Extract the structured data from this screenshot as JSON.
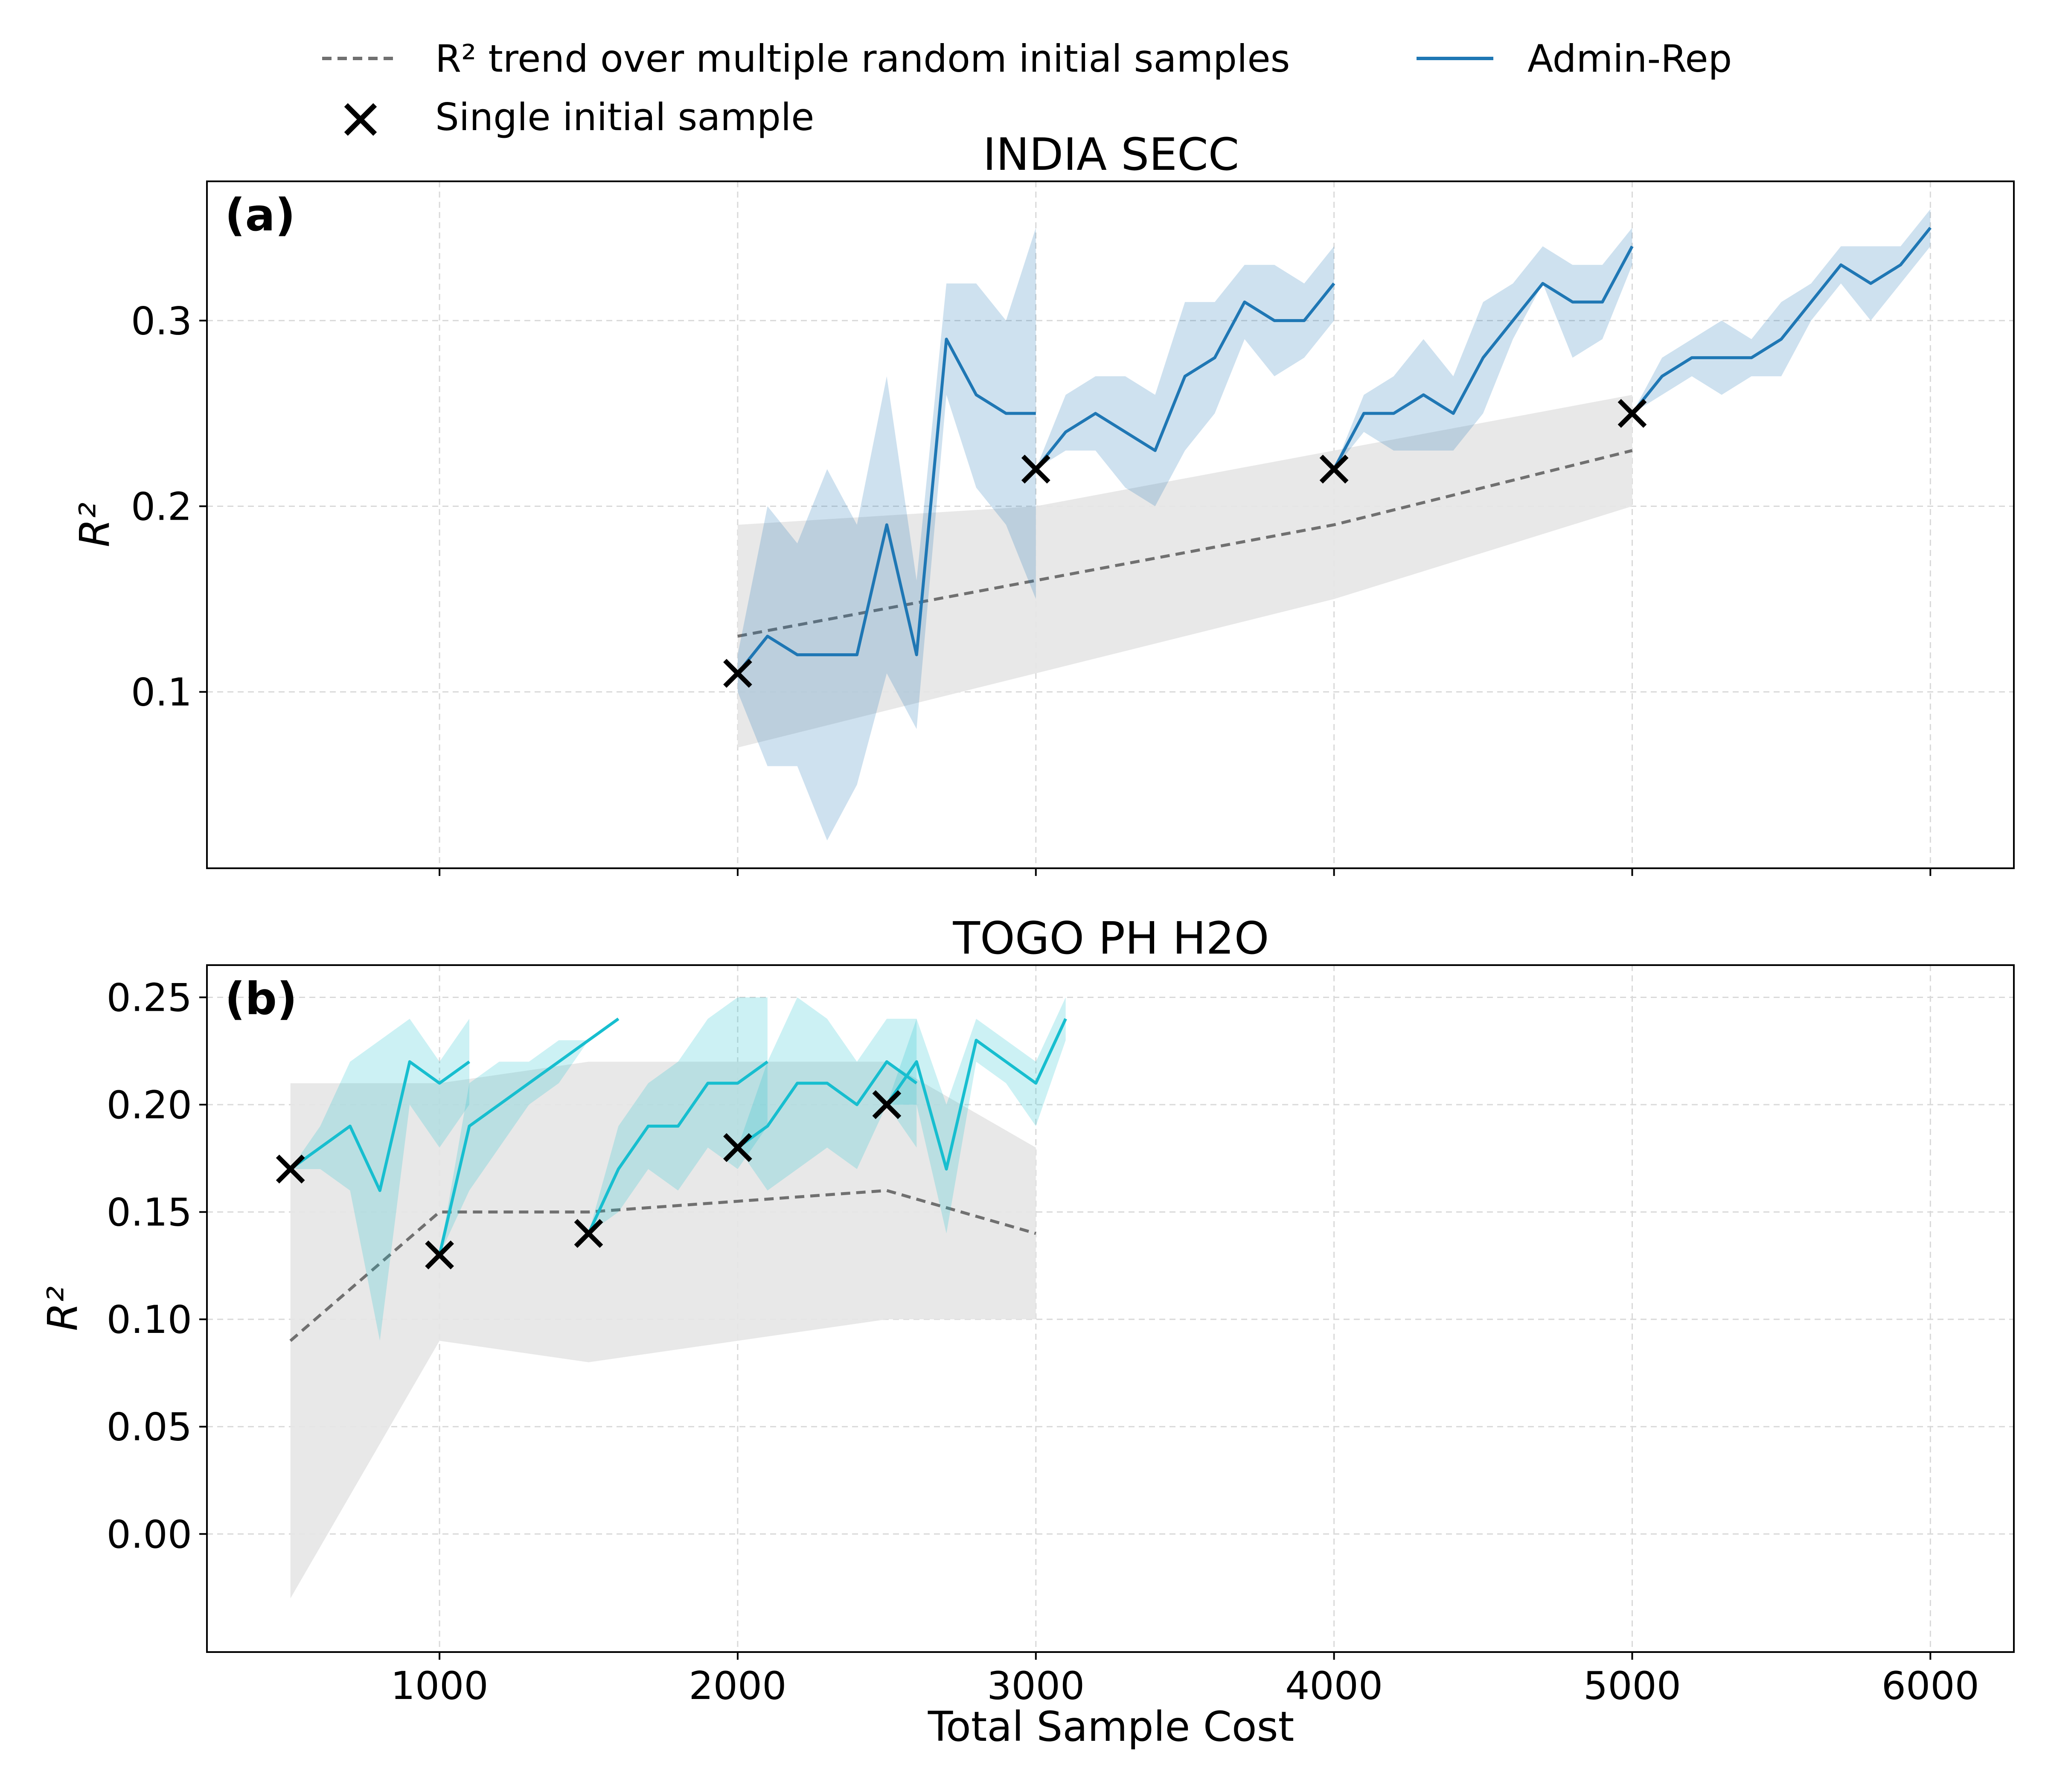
{
  "legend": {
    "trend_label": "R² trend over multiple random initial samples",
    "sample_label": "Single initial sample",
    "method_label": "Admin-Rep"
  },
  "colors": {
    "panel_a_line": "#1f77b4",
    "panel_b_line": "#17becf",
    "trend": "#707070",
    "trend_band": "#e6e6e6",
    "marker": "#000000"
  },
  "xlabel": "Total Sample Cost",
  "chart_data": [
    {
      "type": "line",
      "tag": "(a)",
      "title": "INDIA SECC",
      "ylabel": "R²",
      "xlim": [
        220,
        6280
      ],
      "ylim": [
        0.005,
        0.375
      ],
      "xticks": [
        1000,
        2000,
        3000,
        4000,
        5000,
        6000
      ],
      "yticks": [
        0.1,
        0.2,
        0.3
      ],
      "ytick_labels": [
        "0.1",
        "0.2",
        "0.3"
      ],
      "show_xtick_labels": false,
      "grid": true,
      "trend": {
        "x": [
          2000,
          3000,
          4000,
          5000
        ],
        "y": [
          0.13,
          0.16,
          0.19,
          0.23
        ],
        "lower": [
          0.07,
          0.11,
          0.15,
          0.2
        ],
        "upper": [
          0.19,
          0.2,
          0.23,
          0.26
        ]
      },
      "segments": [
        {
          "x": [
            2000,
            2100,
            2200,
            2300,
            2400,
            2500,
            2600,
            2700,
            2800,
            2900,
            3000
          ],
          "y": [
            0.11,
            0.13,
            0.12,
            0.12,
            0.12,
            0.19,
            0.12,
            0.29,
            0.26,
            0.25,
            0.25
          ],
          "lower": [
            0.1,
            0.06,
            0.06,
            0.02,
            0.05,
            0.11,
            0.08,
            0.26,
            0.21,
            0.19,
            0.15
          ],
          "upper": [
            0.12,
            0.2,
            0.18,
            0.22,
            0.19,
            0.27,
            0.16,
            0.32,
            0.32,
            0.3,
            0.35
          ]
        },
        {
          "x": [
            3000,
            3100,
            3200,
            3300,
            3400,
            3500,
            3600,
            3700,
            3800,
            3900,
            4000
          ],
          "y": [
            0.22,
            0.24,
            0.25,
            0.24,
            0.23,
            0.27,
            0.28,
            0.31,
            0.3,
            0.3,
            0.32
          ],
          "lower": [
            0.22,
            0.23,
            0.23,
            0.21,
            0.2,
            0.23,
            0.25,
            0.29,
            0.27,
            0.28,
            0.3
          ],
          "upper": [
            0.22,
            0.26,
            0.27,
            0.27,
            0.26,
            0.31,
            0.31,
            0.33,
            0.33,
            0.32,
            0.34
          ]
        },
        {
          "x": [
            4000,
            4100,
            4200,
            4300,
            4400,
            4500,
            4600,
            4700,
            4800,
            4900,
            5000
          ],
          "y": [
            0.22,
            0.25,
            0.25,
            0.26,
            0.25,
            0.28,
            0.3,
            0.32,
            0.31,
            0.31,
            0.34
          ],
          "lower": [
            0.22,
            0.24,
            0.23,
            0.23,
            0.23,
            0.25,
            0.29,
            0.32,
            0.28,
            0.29,
            0.33
          ],
          "upper": [
            0.22,
            0.26,
            0.27,
            0.29,
            0.27,
            0.31,
            0.32,
            0.34,
            0.33,
            0.33,
            0.35
          ]
        },
        {
          "x": [
            5000,
            5100,
            5200,
            5300,
            5400,
            5500,
            5600,
            5700,
            5800,
            5900,
            6000
          ],
          "y": [
            0.25,
            0.27,
            0.28,
            0.28,
            0.28,
            0.29,
            0.31,
            0.33,
            0.32,
            0.33,
            0.35
          ],
          "lower": [
            0.25,
            0.26,
            0.27,
            0.26,
            0.27,
            0.27,
            0.3,
            0.32,
            0.3,
            0.32,
            0.34
          ],
          "upper": [
            0.25,
            0.28,
            0.29,
            0.3,
            0.29,
            0.31,
            0.32,
            0.34,
            0.34,
            0.34,
            0.36
          ]
        }
      ],
      "initial_samples": {
        "x": [
          2000,
          3000,
          4000,
          5000
        ],
        "y": [
          0.11,
          0.22,
          0.22,
          0.25
        ]
      }
    },
    {
      "type": "line",
      "tag": "(b)",
      "title": "TOGO PH H2O",
      "ylabel": "R²",
      "xlim": [
        220,
        6280
      ],
      "ylim": [
        -0.055,
        0.265
      ],
      "xticks": [
        1000,
        2000,
        3000,
        4000,
        5000,
        6000
      ],
      "xtick_labels": [
        "1000",
        "2000",
        "3000",
        "4000",
        "5000",
        "6000"
      ],
      "yticks": [
        0,
        0.05,
        0.1,
        0.15,
        0.2,
        0.25
      ],
      "ytick_labels": [
        "0.00",
        "0.05",
        "0.10",
        "0.15",
        "0.20",
        "0.25"
      ],
      "show_xtick_labels": true,
      "grid": true,
      "trend": {
        "x": [
          500,
          1000,
          1500,
          2000,
          2500,
          3000
        ],
        "y": [
          0.09,
          0.15,
          0.15,
          0.155,
          0.16,
          0.14
        ],
        "lower": [
          -0.03,
          0.09,
          0.08,
          0.09,
          0.1,
          0.1
        ],
        "upper": [
          0.21,
          0.21,
          0.22,
          0.22,
          0.22,
          0.18
        ]
      },
      "segments": [
        {
          "x": [
            500,
            600,
            700,
            800,
            900,
            1000,
            1100
          ],
          "y": [
            0.17,
            0.18,
            0.19,
            0.16,
            0.22,
            0.21,
            0.22
          ],
          "lower": [
            0.17,
            0.17,
            0.16,
            0.09,
            0.2,
            0.18,
            0.2
          ],
          "upper": [
            0.17,
            0.19,
            0.22,
            0.23,
            0.24,
            0.22,
            0.24
          ]
        },
        {
          "x": [
            1000,
            1100,
            1200,
            1300,
            1400,
            1500,
            1600
          ],
          "y": [
            0.13,
            0.19,
            0.2,
            0.21,
            0.22,
            0.23,
            0.24
          ],
          "lower": [
            0.13,
            0.16,
            0.18,
            0.2,
            0.21,
            0.23,
            0.24
          ],
          "upper": [
            0.13,
            0.21,
            0.22,
            0.22,
            0.23,
            0.23,
            0.24
          ]
        },
        {
          "x": [
            1500,
            1600,
            1700,
            1800,
            1900,
            2000,
            2100
          ],
          "y": [
            0.14,
            0.17,
            0.19,
            0.19,
            0.21,
            0.21,
            0.22
          ],
          "lower": [
            0.14,
            0.15,
            0.17,
            0.16,
            0.18,
            0.17,
            0.19
          ],
          "upper": [
            0.14,
            0.19,
            0.21,
            0.22,
            0.24,
            0.25,
            0.25
          ]
        },
        {
          "x": [
            2000,
            2100,
            2200,
            2300,
            2400,
            2500,
            2600
          ],
          "y": [
            0.18,
            0.19,
            0.21,
            0.21,
            0.2,
            0.22,
            0.21
          ],
          "lower": [
            0.18,
            0.16,
            0.17,
            0.18,
            0.17,
            0.2,
            0.18
          ],
          "upper": [
            0.18,
            0.22,
            0.25,
            0.24,
            0.22,
            0.24,
            0.24
          ]
        },
        {
          "x": [
            2500,
            2600,
            2700,
            2800,
            2900,
            3000,
            3100
          ],
          "y": [
            0.2,
            0.22,
            0.17,
            0.23,
            0.22,
            0.21,
            0.24
          ],
          "lower": [
            0.2,
            0.2,
            0.14,
            0.22,
            0.21,
            0.19,
            0.23
          ],
          "upper": [
            0.2,
            0.24,
            0.2,
            0.24,
            0.23,
            0.22,
            0.25
          ]
        }
      ],
      "initial_samples": {
        "x": [
          500,
          1000,
          1500,
          2000,
          2500
        ],
        "y": [
          0.17,
          0.13,
          0.14,
          0.18,
          0.2
        ]
      }
    }
  ]
}
